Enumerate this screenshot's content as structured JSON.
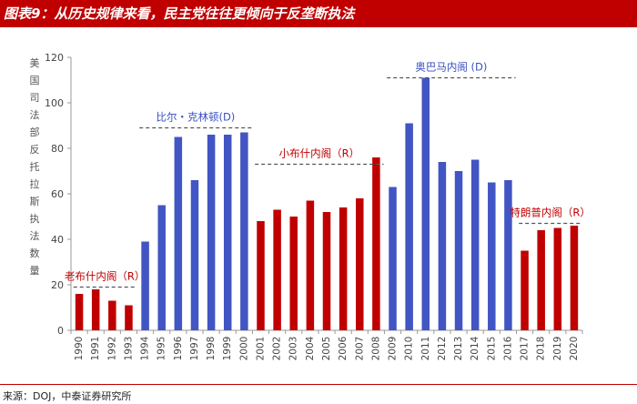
{
  "figure_title": "图表9：从历史规律来看，民主党往往更倾向于反垄断执法",
  "source": "来源：DOJ，中泰证券研究所",
  "colors": {
    "blue": "#4255c4",
    "red": "#c00000",
    "title_bg": "#c00000"
  },
  "chart_data": {
    "type": "bar",
    "title": "",
    "ylabel": "美国司法部反托拉斯执法数量",
    "xlabel": "",
    "ylim": [
      0,
      120
    ],
    "yticks": [
      0,
      20,
      40,
      60,
      80,
      100,
      120
    ],
    "grid": false,
    "categories": [
      "1990",
      "1991",
      "1992",
      "1993",
      "1994",
      "1995",
      "1996",
      "1997",
      "1998",
      "1999",
      "2000",
      "2001",
      "2002",
      "2003",
      "2004",
      "2005",
      "2006",
      "2007",
      "2008",
      "2009",
      "2010",
      "2011",
      "2012",
      "2013",
      "2014",
      "2015",
      "2016",
      "2017",
      "2018",
      "2019",
      "2020"
    ],
    "values": [
      16,
      18,
      13,
      11,
      39,
      55,
      85,
      66,
      86,
      86,
      87,
      48,
      53,
      50,
      57,
      52,
      54,
      58,
      76,
      63,
      91,
      111,
      74,
      70,
      75,
      65,
      66,
      35,
      44,
      45,
      46
    ],
    "bar_party": [
      "R",
      "R",
      "R",
      "R",
      "D",
      "D",
      "D",
      "D",
      "D",
      "D",
      "D",
      "R",
      "R",
      "R",
      "R",
      "R",
      "R",
      "R",
      "R",
      "D",
      "D",
      "D",
      "D",
      "D",
      "D",
      "D",
      "D",
      "R",
      "R",
      "R",
      "R"
    ],
    "annotations": [
      {
        "label": "老布什内阁（R）",
        "from": "1990",
        "to": "1993",
        "line_y": 19,
        "party": "R"
      },
      {
        "label": "比尔・克林顿(D)",
        "from": "1994",
        "to": "2000",
        "line_y": 89,
        "party": "D"
      },
      {
        "label": "小布什内阁（R）",
        "from": "2001",
        "to": "2008",
        "line_y": 73,
        "party": "R"
      },
      {
        "label": "奥巴马内阁 (D)",
        "from": "2009",
        "to": "2016",
        "line_y": 111,
        "party": "D"
      },
      {
        "label": "特朗普内阁（R）",
        "from": "2017",
        "to": "2020",
        "line_y": 47,
        "party": "R"
      }
    ]
  }
}
